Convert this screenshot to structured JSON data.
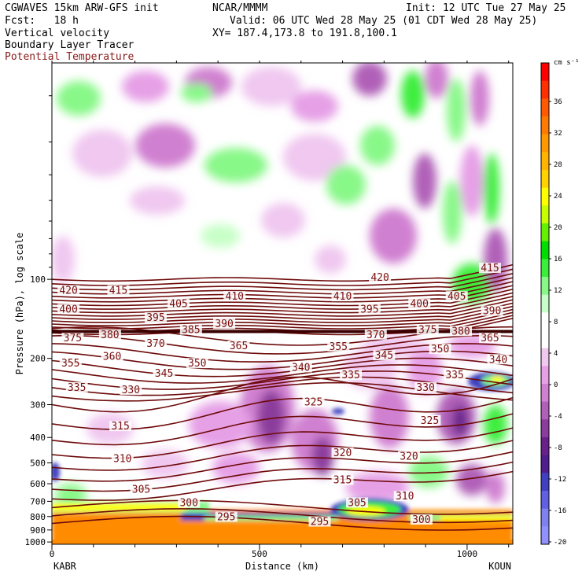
{
  "header": {
    "model": "CGWAVES 15km ARW-GFS init",
    "org": "NCAR/MMMM",
    "init": "Init: 12 UTC Tue 27 May 25",
    "fcst": "Fcst:   18 h",
    "valid": "Valid: 06 UTC Wed 28 May 25 (01 CDT Wed 28 May 25)",
    "field1": "Vertical velocity",
    "field2": "Boundary Layer Tracer",
    "field3": "Potential Temperature",
    "xy": "XY= 187.4,173.8 to 191.8,100.1"
  },
  "colors": {
    "theta_line": "#6e0a0a",
    "field3_text": "#8b1a1a"
  },
  "chart_data": {
    "type": "heatmap",
    "xlabel": "Distance (km)",
    "ylabel": "Pressure (hPa), log scale",
    "xlim": [
      0,
      1110
    ],
    "ylim": [
      1020,
      15
    ],
    "y_scale": "log",
    "x_ticks": [
      0,
      500,
      1000
    ],
    "y_ticks": [
      100,
      200,
      300,
      400,
      500,
      600,
      700,
      800,
      900,
      1000
    ],
    "left_station": "KABR",
    "right_station": "KOUN",
    "colorbar": {
      "unit": "cm s⁻¹",
      "labels": [
        "36",
        "32",
        "28",
        "24",
        "20",
        "16",
        "12",
        "8",
        "4",
        "0",
        "-4",
        "-8",
        "-12",
        "-16",
        "-20"
      ],
      "colors": [
        "#ff0000",
        "#ff3000",
        "#ff5a00",
        "#ff7a00",
        "#ff9900",
        "#ffb400",
        "#ffd200",
        "#ffff00",
        "#c8ff00",
        "#64f000",
        "#00dd00",
        "#3cee3c",
        "#88f888",
        "#c8ffc8",
        "#ffffff",
        "#ffffff",
        "#f0c8f0",
        "#e6a0e6",
        "#d080d0",
        "#b060b8",
        "#8c3c9c",
        "#68208a",
        "#501e8c",
        "#4040c0",
        "#6060e0",
        "#8080f0",
        "#9090ff"
      ]
    },
    "theta_labels": [
      {
        "v": "420",
        "x": 40,
        "p": 112
      },
      {
        "v": "415",
        "x": 160,
        "p": 112
      },
      {
        "v": "410",
        "x": 440,
        "p": 118
      },
      {
        "v": "420",
        "x": 790,
        "p": 100
      },
      {
        "v": "415",
        "x": 1055,
        "p": 92
      },
      {
        "v": "400",
        "x": 40,
        "p": 132
      },
      {
        "v": "405",
        "x": 305,
        "p": 126
      },
      {
        "v": "410",
        "x": 700,
        "p": 118
      },
      {
        "v": "395",
        "x": 250,
        "p": 142
      },
      {
        "v": "390",
        "x": 415,
        "p": 150
      },
      {
        "v": "395",
        "x": 765,
        "p": 132
      },
      {
        "v": "400",
        "x": 885,
        "p": 126
      },
      {
        "v": "405",
        "x": 975,
        "p": 118
      },
      {
        "v": "390",
        "x": 1060,
        "p": 134
      },
      {
        "v": "375",
        "x": 50,
        "p": 170
      },
      {
        "v": "380",
        "x": 140,
        "p": 165
      },
      {
        "v": "385",
        "x": 335,
        "p": 158
      },
      {
        "v": "370",
        "x": 250,
        "p": 178
      },
      {
        "v": "370",
        "x": 780,
        "p": 165
      },
      {
        "v": "375",
        "x": 905,
        "p": 158
      },
      {
        "v": "380",
        "x": 985,
        "p": 160
      },
      {
        "v": "365",
        "x": 1055,
        "p": 170
      },
      {
        "v": "360",
        "x": 145,
        "p": 200
      },
      {
        "v": "355",
        "x": 45,
        "p": 212
      },
      {
        "v": "350",
        "x": 350,
        "p": 212
      },
      {
        "v": "365",
        "x": 450,
        "p": 182
      },
      {
        "v": "355",
        "x": 690,
        "p": 183
      },
      {
        "v": "345",
        "x": 800,
        "p": 198
      },
      {
        "v": "350",
        "x": 935,
        "p": 187
      },
      {
        "v": "340",
        "x": 600,
        "p": 220
      },
      {
        "v": "335",
        "x": 720,
        "p": 235
      },
      {
        "v": "345",
        "x": 270,
        "p": 232
      },
      {
        "v": "335",
        "x": 970,
        "p": 235
      },
      {
        "v": "340",
        "x": 1075,
        "p": 205
      },
      {
        "v": "335",
        "x": 60,
        "p": 262
      },
      {
        "v": "330",
        "x": 190,
        "p": 268
      },
      {
        "v": "325",
        "x": 630,
        "p": 298
      },
      {
        "v": "330",
        "x": 900,
        "p": 262
      },
      {
        "v": "325",
        "x": 910,
        "p": 350
      },
      {
        "v": "315",
        "x": 165,
        "p": 368
      },
      {
        "v": "310",
        "x": 170,
        "p": 490
      },
      {
        "v": "320",
        "x": 700,
        "p": 465
      },
      {
        "v": "320",
        "x": 860,
        "p": 480
      },
      {
        "v": "315",
        "x": 700,
        "p": 590
      },
      {
        "v": "305",
        "x": 215,
        "p": 640
      },
      {
        "v": "300",
        "x": 330,
        "p": 720
      },
      {
        "v": "305",
        "x": 735,
        "p": 720
      },
      {
        "v": "310",
        "x": 850,
        "p": 680
      },
      {
        "v": "295",
        "x": 420,
        "p": 815
      },
      {
        "v": "295",
        "x": 645,
        "p": 850
      },
      {
        "v": "300",
        "x": 890,
        "p": 835
      }
    ]
  }
}
